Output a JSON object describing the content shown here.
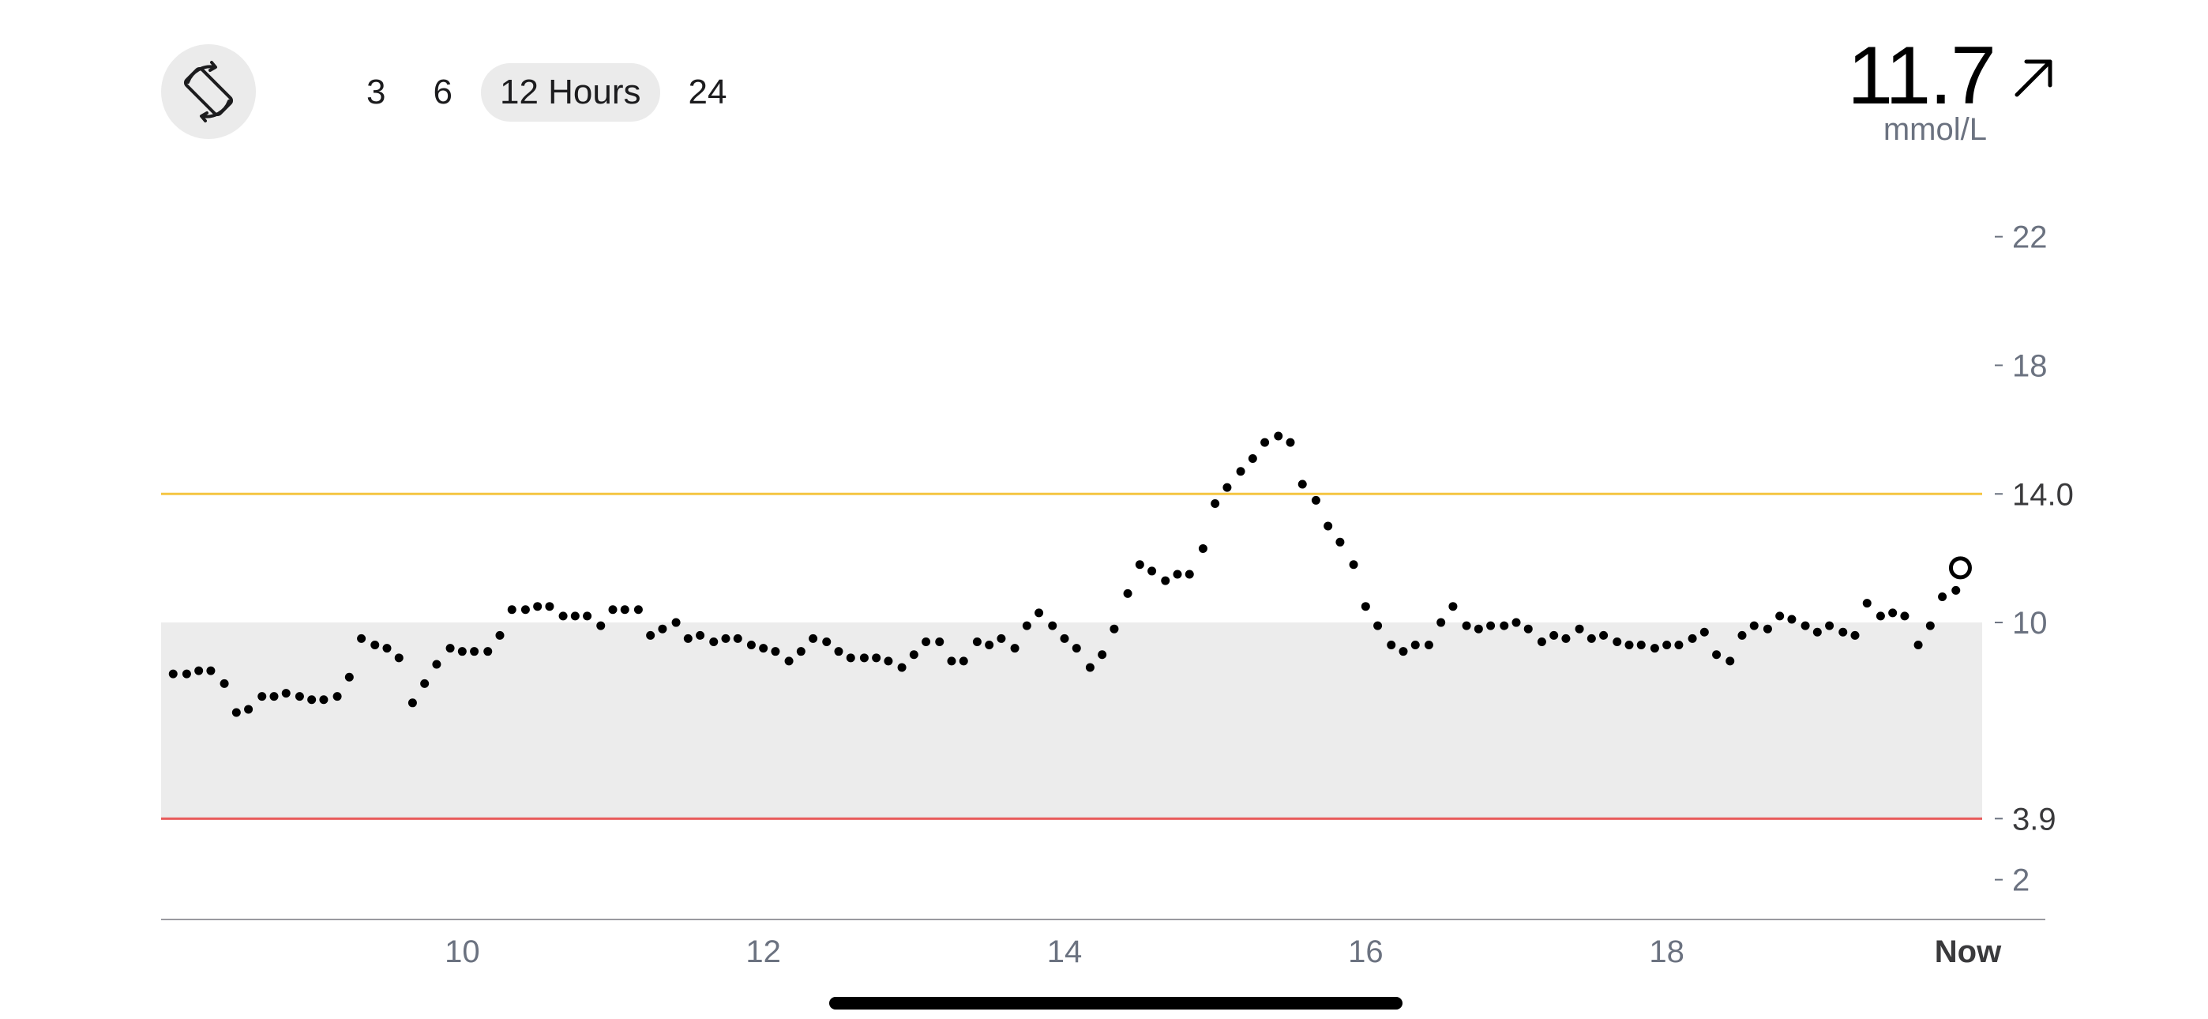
{
  "toolbar": {
    "rotate_icon": "rotate-screen-icon",
    "ranges": [
      {
        "label": "3",
        "active": false
      },
      {
        "label": "6",
        "active": false
      },
      {
        "label": "12 Hours",
        "active": true
      },
      {
        "label": "24",
        "active": false
      }
    ]
  },
  "current": {
    "value": "11.7",
    "unit": "mmol/L",
    "trend_icon": "arrow-up-right-icon"
  },
  "colors": {
    "high_threshold": "#f5c542",
    "low_threshold": "#e85b5b",
    "target_band": "#ececec",
    "dots": "#000000"
  },
  "chart_data": {
    "type": "scatter",
    "unit": "mmol/L",
    "ylim": [
      0,
      24
    ],
    "xlim": [
      8,
      20
    ],
    "ytick_labels": [
      {
        "value": 22,
        "label": "22"
      },
      {
        "value": 18,
        "label": "18"
      },
      {
        "value": 14,
        "label": "14.0"
      },
      {
        "value": 10,
        "label": "10"
      },
      {
        "value": 3.9,
        "label": "3.9"
      },
      {
        "value": 2,
        "label": "2"
      }
    ],
    "xtick_labels": [
      {
        "value": 10,
        "label": "10"
      },
      {
        "value": 12,
        "label": "12"
      },
      {
        "value": 14,
        "label": "14"
      },
      {
        "value": 16,
        "label": "16"
      },
      {
        "value": 18,
        "label": "18"
      },
      {
        "value": 20,
        "label": "Now"
      }
    ],
    "target_range": [
      3.9,
      10
    ],
    "high_threshold": 14.0,
    "low_threshold": 3.9,
    "latest_point": {
      "x": 19.95,
      "y": 11.7
    },
    "points": [
      [
        8.08,
        8.4
      ],
      [
        8.17,
        8.4
      ],
      [
        8.25,
        8.5
      ],
      [
        8.33,
        8.5
      ],
      [
        8.42,
        8.1
      ],
      [
        8.5,
        7.2
      ],
      [
        8.58,
        7.3
      ],
      [
        8.67,
        7.7
      ],
      [
        8.75,
        7.7
      ],
      [
        8.83,
        7.8
      ],
      [
        8.92,
        7.7
      ],
      [
        9.0,
        7.6
      ],
      [
        9.08,
        7.6
      ],
      [
        9.17,
        7.7
      ],
      [
        9.25,
        8.3
      ],
      [
        9.33,
        9.5
      ],
      [
        9.42,
        9.3
      ],
      [
        9.5,
        9.2
      ],
      [
        9.58,
        8.9
      ],
      [
        9.67,
        7.5
      ],
      [
        9.75,
        8.1
      ],
      [
        9.83,
        8.7
      ],
      [
        9.92,
        9.2
      ],
      [
        10.0,
        9.1
      ],
      [
        10.08,
        9.1
      ],
      [
        10.17,
        9.1
      ],
      [
        10.25,
        9.6
      ],
      [
        10.33,
        10.4
      ],
      [
        10.42,
        10.4
      ],
      [
        10.5,
        10.5
      ],
      [
        10.58,
        10.5
      ],
      [
        10.67,
        10.2
      ],
      [
        10.75,
        10.2
      ],
      [
        10.83,
        10.2
      ],
      [
        10.92,
        9.9
      ],
      [
        11.0,
        10.4
      ],
      [
        11.08,
        10.4
      ],
      [
        11.17,
        10.4
      ],
      [
        11.25,
        9.6
      ],
      [
        11.33,
        9.8
      ],
      [
        11.42,
        10.0
      ],
      [
        11.5,
        9.5
      ],
      [
        11.58,
        9.6
      ],
      [
        11.67,
        9.4
      ],
      [
        11.75,
        9.5
      ],
      [
        11.83,
        9.5
      ],
      [
        11.92,
        9.3
      ],
      [
        12.0,
        9.2
      ],
      [
        12.08,
        9.1
      ],
      [
        12.17,
        8.8
      ],
      [
        12.25,
        9.1
      ],
      [
        12.33,
        9.5
      ],
      [
        12.42,
        9.4
      ],
      [
        12.5,
        9.1
      ],
      [
        12.58,
        8.9
      ],
      [
        12.67,
        8.9
      ],
      [
        12.75,
        8.9
      ],
      [
        12.83,
        8.8
      ],
      [
        12.92,
        8.6
      ],
      [
        13.0,
        9.0
      ],
      [
        13.08,
        9.4
      ],
      [
        13.17,
        9.4
      ],
      [
        13.25,
        8.8
      ],
      [
        13.33,
        8.8
      ],
      [
        13.42,
        9.4
      ],
      [
        13.5,
        9.3
      ],
      [
        13.58,
        9.5
      ],
      [
        13.67,
        9.2
      ],
      [
        13.75,
        9.9
      ],
      [
        13.83,
        10.3
      ],
      [
        13.92,
        9.9
      ],
      [
        14.0,
        9.5
      ],
      [
        14.08,
        9.2
      ],
      [
        14.17,
        8.6
      ],
      [
        14.25,
        9.0
      ],
      [
        14.33,
        9.8
      ],
      [
        14.42,
        10.9
      ],
      [
        14.5,
        11.8
      ],
      [
        14.58,
        11.6
      ],
      [
        14.67,
        11.3
      ],
      [
        14.75,
        11.5
      ],
      [
        14.83,
        11.5
      ],
      [
        14.92,
        12.3
      ],
      [
        15.0,
        13.7
      ],
      [
        15.08,
        14.2
      ],
      [
        15.17,
        14.7
      ],
      [
        15.25,
        15.1
      ],
      [
        15.33,
        15.6
      ],
      [
        15.42,
        15.8
      ],
      [
        15.5,
        15.6
      ],
      [
        15.58,
        14.3
      ],
      [
        15.67,
        13.8
      ],
      [
        15.75,
        13.0
      ],
      [
        15.83,
        12.5
      ],
      [
        15.92,
        11.8
      ],
      [
        16.0,
        10.5
      ],
      [
        16.08,
        9.9
      ],
      [
        16.17,
        9.3
      ],
      [
        16.25,
        9.1
      ],
      [
        16.33,
        9.3
      ],
      [
        16.42,
        9.3
      ],
      [
        16.5,
        10.0
      ],
      [
        16.58,
        10.5
      ],
      [
        16.67,
        9.9
      ],
      [
        16.75,
        9.8
      ],
      [
        16.83,
        9.9
      ],
      [
        16.92,
        9.9
      ],
      [
        17.0,
        10.0
      ],
      [
        17.08,
        9.8
      ],
      [
        17.17,
        9.4
      ],
      [
        17.25,
        9.6
      ],
      [
        17.33,
        9.5
      ],
      [
        17.42,
        9.8
      ],
      [
        17.5,
        9.5
      ],
      [
        17.58,
        9.6
      ],
      [
        17.67,
        9.4
      ],
      [
        17.75,
        9.3
      ],
      [
        17.83,
        9.3
      ],
      [
        17.92,
        9.2
      ],
      [
        18.0,
        9.3
      ],
      [
        18.08,
        9.3
      ],
      [
        18.17,
        9.5
      ],
      [
        18.25,
        9.7
      ],
      [
        18.33,
        9.0
      ],
      [
        18.42,
        8.8
      ],
      [
        18.5,
        9.6
      ],
      [
        18.58,
        9.9
      ],
      [
        18.67,
        9.8
      ],
      [
        18.75,
        10.2
      ],
      [
        18.83,
        10.1
      ],
      [
        18.92,
        9.9
      ],
      [
        19.0,
        9.7
      ],
      [
        19.08,
        9.9
      ],
      [
        19.17,
        9.7
      ],
      [
        19.25,
        9.6
      ],
      [
        19.33,
        10.6
      ],
      [
        19.42,
        10.2
      ],
      [
        19.5,
        10.3
      ],
      [
        19.58,
        10.2
      ],
      [
        19.67,
        9.3
      ],
      [
        19.75,
        9.9
      ],
      [
        19.83,
        10.8
      ],
      [
        19.92,
        11.0
      ]
    ]
  }
}
